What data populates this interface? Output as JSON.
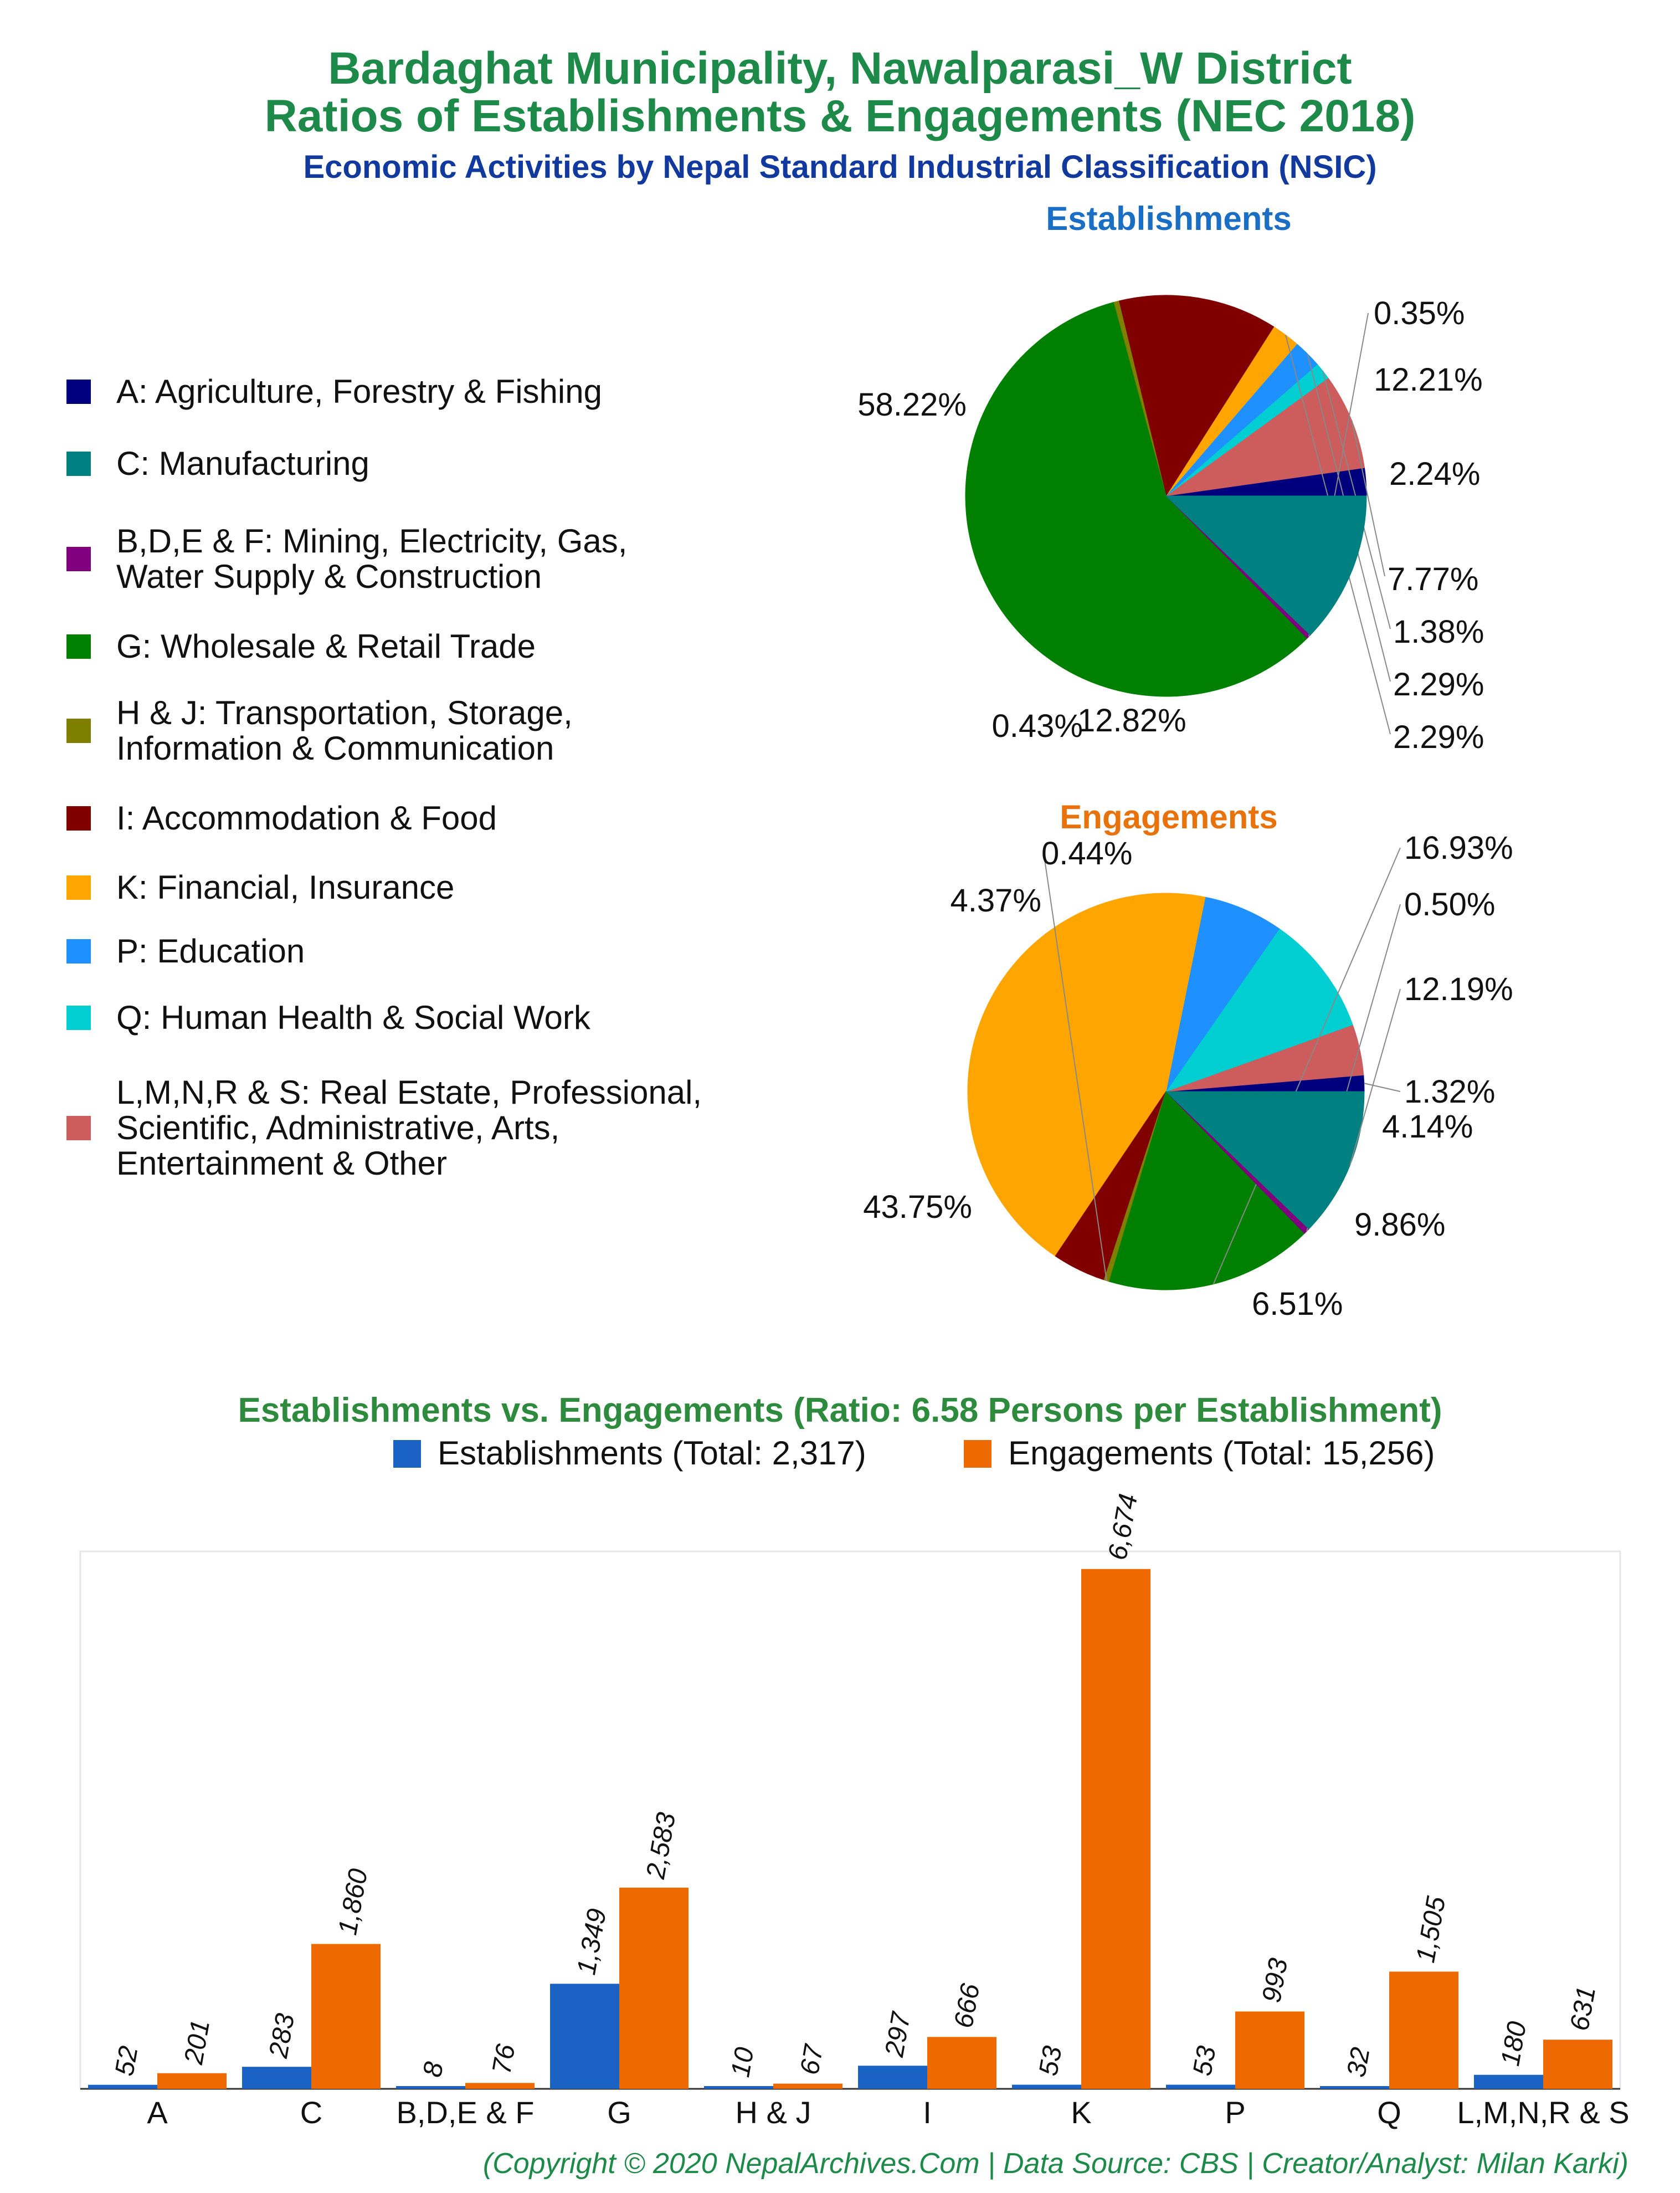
{
  "title_line1": "Bardaghat Municipality, Nawalparasi_W District",
  "title_line2": "Ratios of Establishments & Engagements (NEC 2018)",
  "subtitle": "Economic Activities by Nepal Standard Industrial Classification (NSIC)",
  "legend": [
    {
      "label": "A: Agriculture, Forestry & Fishing",
      "color": "#00007f"
    },
    {
      "label": "C: Manufacturing",
      "color": "#008080"
    },
    {
      "label": "B,D,E & F: Mining, Electricity, Gas,\nWater Supply & Construction",
      "color": "#800080"
    },
    {
      "label": "G: Wholesale & Retail Trade",
      "color": "#008000"
    },
    {
      "label": "H & J: Transportation, Storage,\nInformation & Communication",
      "color": "#808000"
    },
    {
      "label": "I: Accommodation & Food",
      "color": "#800000"
    },
    {
      "label": "K: Financial, Insurance",
      "color": "#ffa500"
    },
    {
      "label": "P: Education",
      "color": "#1e90ff"
    },
    {
      "label": "Q: Human Health & Social Work",
      "color": "#00ced1"
    },
    {
      "label": "L,M,N,R & S: Real Estate, Professional,\nScientific, Administrative, Arts,\nEntertainment & Other",
      "color": "#cd5c5c"
    }
  ],
  "chart_data": [
    {
      "type": "pie",
      "title": "Establishments",
      "title_color": "#1a6fc4",
      "slices": [
        {
          "category": "A",
          "value": 2.24,
          "label": "2.24%",
          "color": "#00007f"
        },
        {
          "category": "L,M,N,R & S",
          "value": 7.77,
          "label": "7.77%",
          "color": "#cd5c5c"
        },
        {
          "category": "Q",
          "value": 1.38,
          "label": "1.38%",
          "color": "#00ced1"
        },
        {
          "category": "P",
          "value": 2.29,
          "label": "2.29%",
          "color": "#1e90ff"
        },
        {
          "category": "K",
          "value": 2.29,
          "label": "2.29%",
          "color": "#ffa500"
        },
        {
          "category": "I",
          "value": 12.82,
          "label": "12.82%",
          "color": "#800000"
        },
        {
          "category": "H & J",
          "value": 0.43,
          "label": "0.43%",
          "color": "#808000"
        },
        {
          "category": "G",
          "value": 58.22,
          "label": "58.22%",
          "color": "#008000"
        },
        {
          "category": "B,D,E & F",
          "value": 0.35,
          "label": "0.35%",
          "color": "#800080"
        },
        {
          "category": "C",
          "value": 12.21,
          "label": "12.21%",
          "color": "#008080"
        }
      ]
    },
    {
      "type": "pie",
      "title": "Engagements",
      "title_color": "#e8730c",
      "slices": [
        {
          "category": "A",
          "value": 1.32,
          "label": "1.32%",
          "color": "#00007f"
        },
        {
          "category": "L,M,N,R & S",
          "value": 4.14,
          "label": "4.14%",
          "color": "#cd5c5c"
        },
        {
          "category": "Q",
          "value": 9.86,
          "label": "9.86%",
          "color": "#00ced1"
        },
        {
          "category": "P",
          "value": 6.51,
          "label": "6.51%",
          "color": "#1e90ff"
        },
        {
          "category": "K",
          "value": 43.75,
          "label": "43.75%",
          "color": "#ffa500"
        },
        {
          "category": "I",
          "value": 4.37,
          "label": "4.37%",
          "color": "#800000"
        },
        {
          "category": "H & J",
          "value": 0.44,
          "label": "0.44%",
          "color": "#808000"
        },
        {
          "category": "G",
          "value": 16.93,
          "label": "16.93%",
          "color": "#008000"
        },
        {
          "category": "B,D,E & F",
          "value": 0.5,
          "label": "0.50%",
          "color": "#800080"
        },
        {
          "category": "C",
          "value": 12.19,
          "label": "12.19%",
          "color": "#008080"
        }
      ]
    },
    {
      "type": "bar",
      "title": "Establishments vs. Engagements (Ratio: 6.58 Persons per Establishment)",
      "title_color": "#2e8b3e",
      "categories": [
        "A",
        "C",
        "B,D,E & F",
        "G",
        "H & J",
        "I",
        "K",
        "P",
        "Q",
        "L,M,N,R & S"
      ],
      "series": [
        {
          "name": "Establishments (Total: 2,317)",
          "color": "#1a63c4",
          "values": [
            52,
            283,
            8,
            1349,
            10,
            297,
            53,
            53,
            32,
            180
          ],
          "labels": [
            "52",
            "283",
            "8",
            "1,349",
            "10",
            "297",
            "53",
            "53",
            "32",
            "180"
          ]
        },
        {
          "name": "Engagements (Total: 15,256)",
          "color": "#ee6a00",
          "values": [
            201,
            1860,
            76,
            2583,
            67,
            666,
            6674,
            993,
            1505,
            631
          ],
          "labels": [
            "201",
            "1,860",
            "76",
            "2,583",
            "67",
            "666",
            "6,674",
            "993",
            "1,505",
            "631"
          ]
        }
      ],
      "ylim": [
        0,
        6900
      ],
      "legend_position": "top"
    }
  ],
  "footer": "(Copyright © 2020 NepalArchives.Com | Data Source: CBS | Creator/Analyst: Milan Karki)"
}
